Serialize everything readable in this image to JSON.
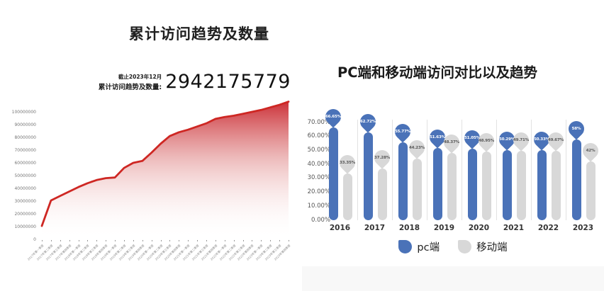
{
  "left_chart": {
    "title": "累计访问趋势及数量",
    "as_of": "截止2023年12月",
    "stat_label": "累计访问趋势及数量:",
    "stat_value": "2942175779"
  },
  "right_chart": {
    "title": "PC端和移动端访问对比以及趋势",
    "legend": [
      {
        "label": "pc端",
        "color": "#4a72b8"
      },
      {
        "label": "移动端",
        "color": "#d8d8d8"
      }
    ]
  },
  "colors": {
    "line_red": "#ce2723",
    "pc_blue": "#4a72b8",
    "mobile_gray": "#d8d8d8",
    "balloon_gray_text": "#595959"
  },
  "chart_data": [
    {
      "type": "area",
      "title": "累计访问趋势及数量",
      "annotation": "截止2023年12月 累计访问趋势及数量: 2942175779",
      "x": [
        "2017年第一季度",
        "2017年第二季度",
        "2017年第三季度",
        "2017年第四季度",
        "2018年第一季度",
        "2018年第二季度",
        "2018年第三季度",
        "2018年第四季度",
        "2019年第一季度",
        "2019年第二季度",
        "2019年第三季度",
        "2019年第四季度",
        "2020年第一季度",
        "2020年第二季度",
        "2020年第三季度",
        "2020年第四季度",
        "2021年第一季度",
        "2021年第二季度",
        "2021年第三季度",
        "2021年第四季度",
        "2022年第一季度",
        "2022年第二季度",
        "2022年第三季度",
        "2022年第四季度",
        "2023年第一季度",
        "2023年第二季度",
        "2023年第三季度",
        "2023年第四季度"
      ],
      "values": [
        10500000,
        30500000,
        34000000,
        37500000,
        41000000,
        44000000,
        46500000,
        48000000,
        48500000,
        56000000,
        60000000,
        61500000,
        68000000,
        75000000,
        81000000,
        84000000,
        86000000,
        88500000,
        91000000,
        94500000,
        96000000,
        97000000,
        98500000,
        100000000,
        101500000,
        103500000,
        105500000,
        108000000
      ],
      "yticks": [
        0,
        10000000,
        20000000,
        30000000,
        40000000,
        50000000,
        60000000,
        70000000,
        80000000,
        90000000,
        100000000
      ],
      "ylim": [
        0,
        100000000
      ],
      "grid": false,
      "legend_position": "none",
      "xlabel": "",
      "ylabel": ""
    },
    {
      "type": "bar",
      "title": "PC端和移动端访问对比以及趋势",
      "categories": [
        "2016",
        "2017",
        "2018",
        "2019",
        "2020",
        "2021",
        "2022",
        "2023"
      ],
      "series": [
        {
          "name": "pc端",
          "color": "#4a72b8",
          "values": [
            66.65,
            62.72,
            55.77,
            51.63,
            51.05,
            50.29,
            50.33,
            58
          ],
          "labels": [
            "66.65%",
            "62.72%",
            "55.77%",
            "51.63%",
            "51.05%",
            "50.29%",
            "50.33%",
            "58%"
          ]
        },
        {
          "name": "移动端",
          "color": "#d8d8d8",
          "values": [
            33.35,
            37.28,
            44.23,
            48.37,
            48.95,
            49.71,
            49.67,
            42
          ],
          "labels": [
            "33.35%",
            "37.28%",
            "44.23%",
            "48.37%",
            "48.95%",
            "49.71%",
            "49.67%",
            "42%"
          ]
        }
      ],
      "yticks_labels": [
        "0.00%",
        "10.00%",
        "20.00%",
        "30.00%",
        "40.00%",
        "50.00%",
        "60.00%",
        "70.00%"
      ],
      "ylim": [
        0,
        70
      ],
      "grid": false,
      "legend_position": "bottom",
      "xlabel": "",
      "ylabel": ""
    }
  ]
}
